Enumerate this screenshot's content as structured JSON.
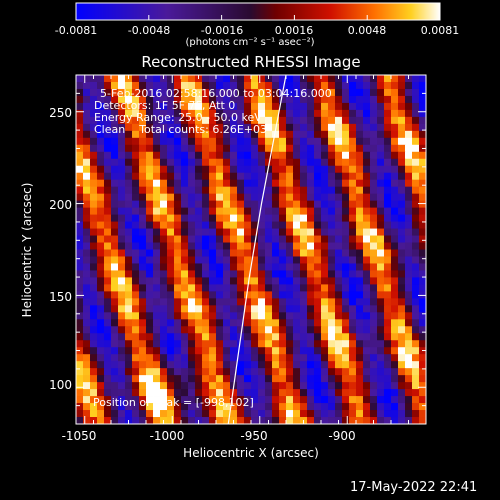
{
  "chart_data": {
    "type": "heatmap",
    "title": "Reconstructed RHESSI Image",
    "xlabel": "Heliocentric X (arcsec)",
    "ylabel": "Heliocentric Y (arcsec)",
    "xlim": [
      -1055,
      -855
    ],
    "ylim": [
      80,
      270
    ],
    "xticks": [
      -1050,
      -1000,
      -950,
      -900
    ],
    "yticks": [
      100,
      150,
      200,
      250
    ],
    "colorbar": {
      "label": "(photons cm⁻² s⁻¹ asec⁻²)",
      "min": -0.0081,
      "max": 0.0081,
      "ticks": [
        "-0.0081",
        "-0.0048",
        "-0.0016",
        "0.0016",
        "0.0048",
        "0.0081"
      ],
      "colormap": "blue-purple-red-yellow-white"
    },
    "grid": {
      "nx": 50,
      "ny": 50,
      "pattern": "diagonal fringes, approx. 38 arcsec period, tilted",
      "peak_position": [
        -998,
        102
      ]
    },
    "limb_curve": {
      "color": "#ffffff",
      "points": [
        [
          -968,
          80
        ],
        [
          -962,
          120
        ],
        [
          -956,
          160
        ],
        [
          -949,
          200
        ],
        [
          -941,
          240
        ],
        [
          -935,
          270
        ]
      ]
    },
    "annotations": [
      "5-Feb-2016 02:58:16.000 to 03:04:16.000",
      "Detectors: 1F 5F 7F, Att 0",
      "Energy Range: 25.0 - 50.0 keV",
      "Clean    Total counts: 6.26E+03"
    ],
    "peak_label": "Position of Peak = [-998,102]",
    "timestamp": "17-May-2022 22:41"
  }
}
